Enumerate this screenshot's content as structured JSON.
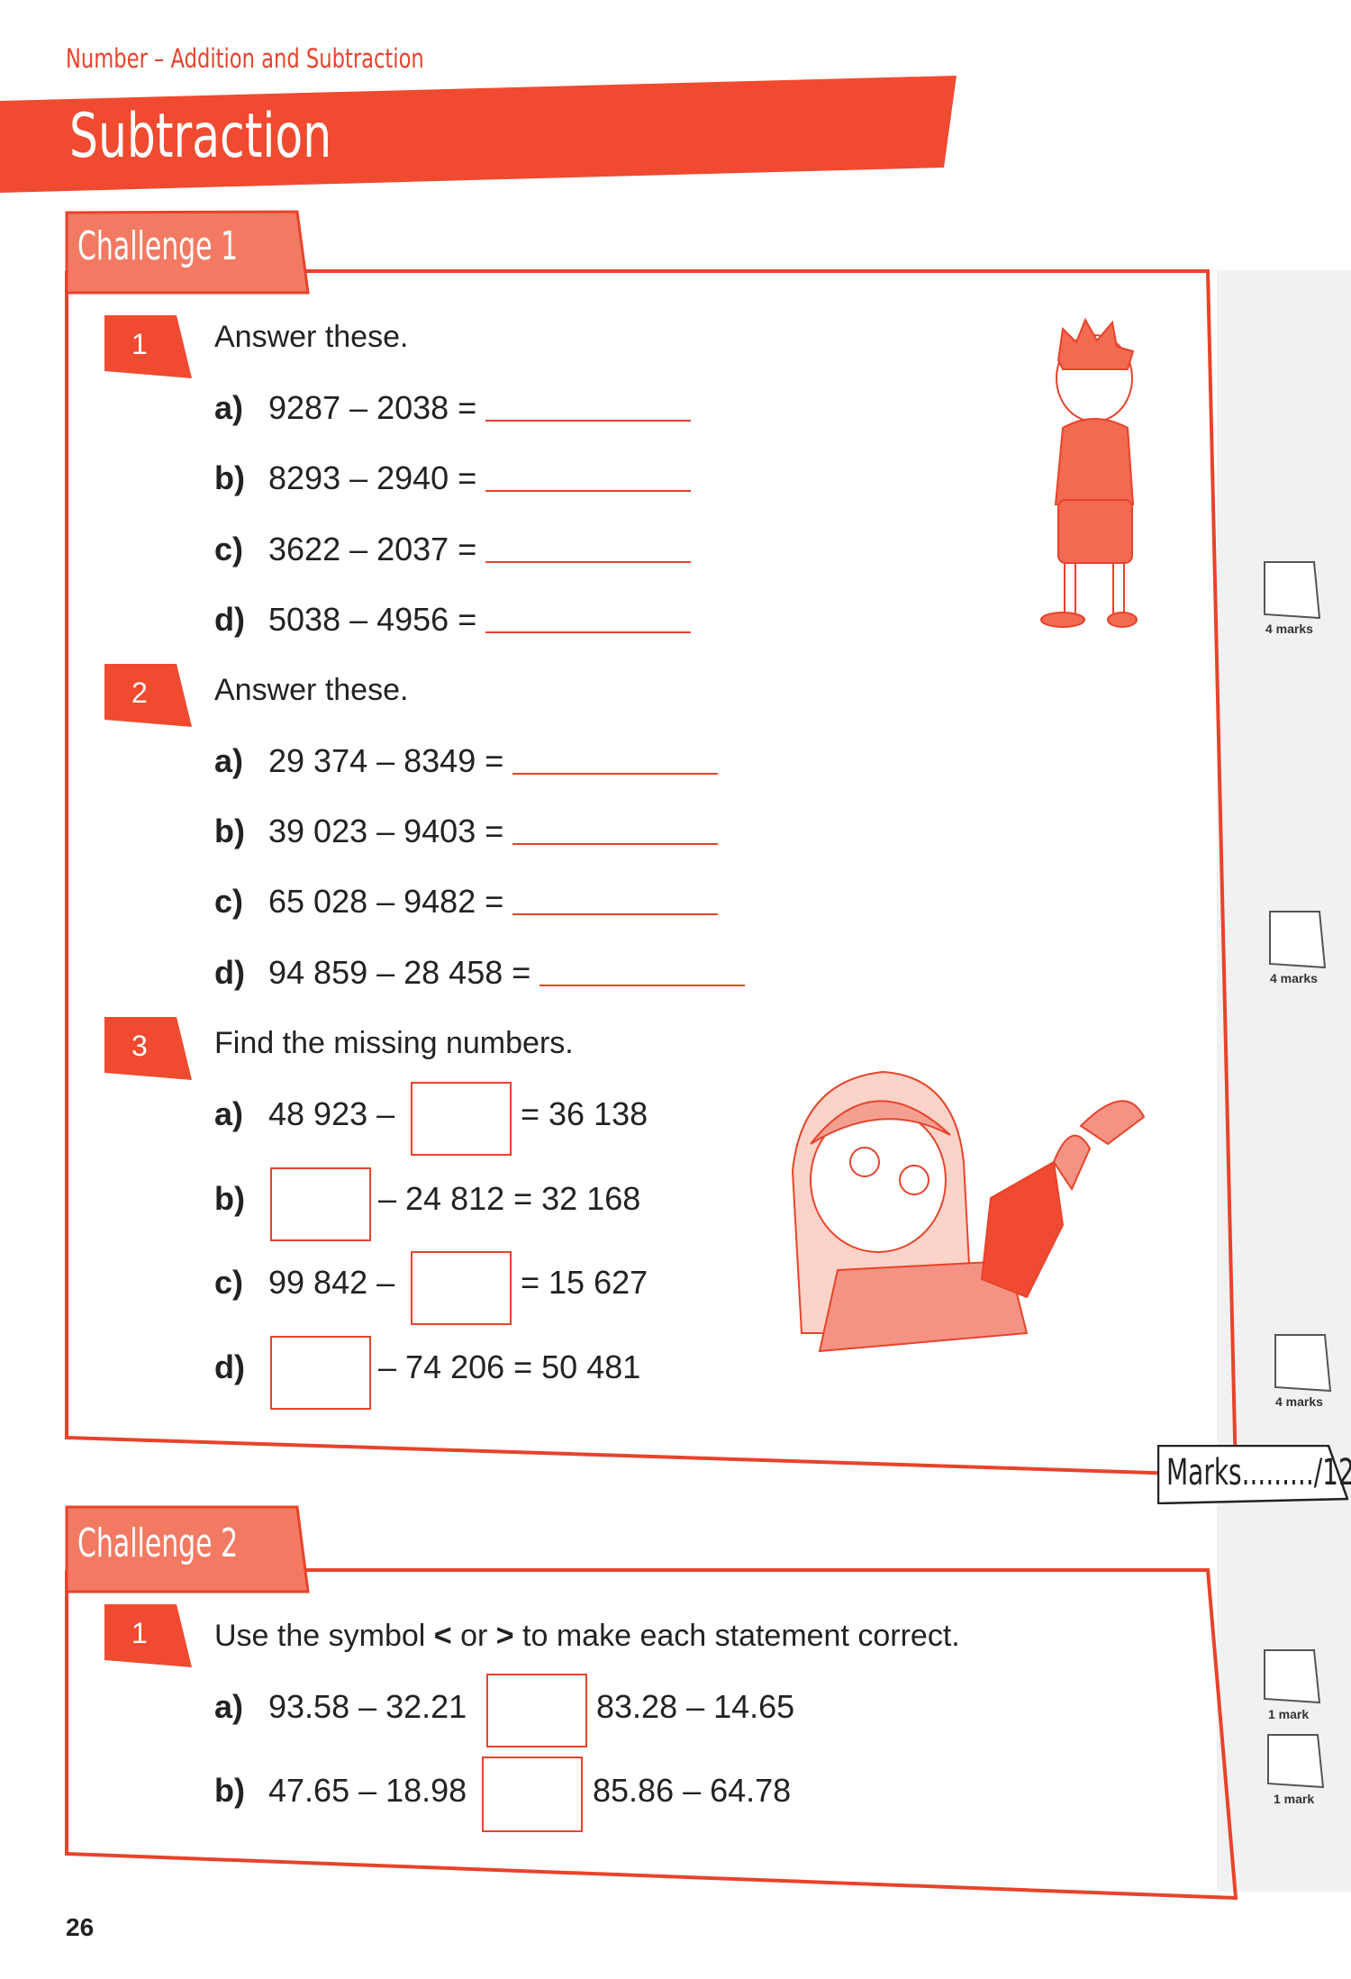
{
  "header": {
    "section": "Number – Addition and Subtraction",
    "title": "Subtraction"
  },
  "colors": {
    "accent": "#e8432b",
    "tab": "#f27a63",
    "margin_strip": "#f1f1f1"
  },
  "challenge1": {
    "label": "Challenge 1",
    "q1": {
      "number": "1",
      "prompt": "Answer these.",
      "marks": "4 marks",
      "items": [
        {
          "letter": "a)",
          "expr": "9287 – 2038 ="
        },
        {
          "letter": "b)",
          "expr": "8293 – 2940 ="
        },
        {
          "letter": "c)",
          "expr": "3622 – 2037 ="
        },
        {
          "letter": "d)",
          "expr": "5038 – 4956 ="
        }
      ]
    },
    "q2": {
      "number": "2",
      "prompt": "Answer these.",
      "marks": "4 marks",
      "items": [
        {
          "letter": "a)",
          "expr": "29 374 – 8349 ="
        },
        {
          "letter": "b)",
          "expr": "39 023 – 9403 ="
        },
        {
          "letter": "c)",
          "expr": "65 028 – 9482 ="
        },
        {
          "letter": "d)",
          "expr": "94 859 – 28 458 ="
        }
      ]
    },
    "q3": {
      "number": "3",
      "prompt": "Find the missing numbers.",
      "marks": "4 marks",
      "items": [
        {
          "letter": "a)",
          "before": "48 923 –",
          "after": "= 36 138"
        },
        {
          "letter": "b)",
          "before": "",
          "after": "– 24 812 = 32 168"
        },
        {
          "letter": "c)",
          "before": "99 842 –",
          "after": "= 15 627"
        },
        {
          "letter": "d)",
          "before": "",
          "after": "– 74 206 = 50 481"
        }
      ]
    },
    "total": "Marks........./12"
  },
  "challenge2": {
    "label": "Challenge 2",
    "q1": {
      "number": "1",
      "prompt_pre": "Use the symbol ",
      "lt": "<",
      "or": " or ",
      "gt": ">",
      "prompt_post": " to make each statement correct.",
      "items": [
        {
          "letter": "a)",
          "left": "93.58 – 32.21",
          "right": "83.28 – 14.65",
          "marks": "1 mark"
        },
        {
          "letter": "b)",
          "left": "47.65 – 18.98",
          "right": "85.86 – 64.78",
          "marks": "1 mark"
        }
      ]
    }
  },
  "page_number": "26"
}
